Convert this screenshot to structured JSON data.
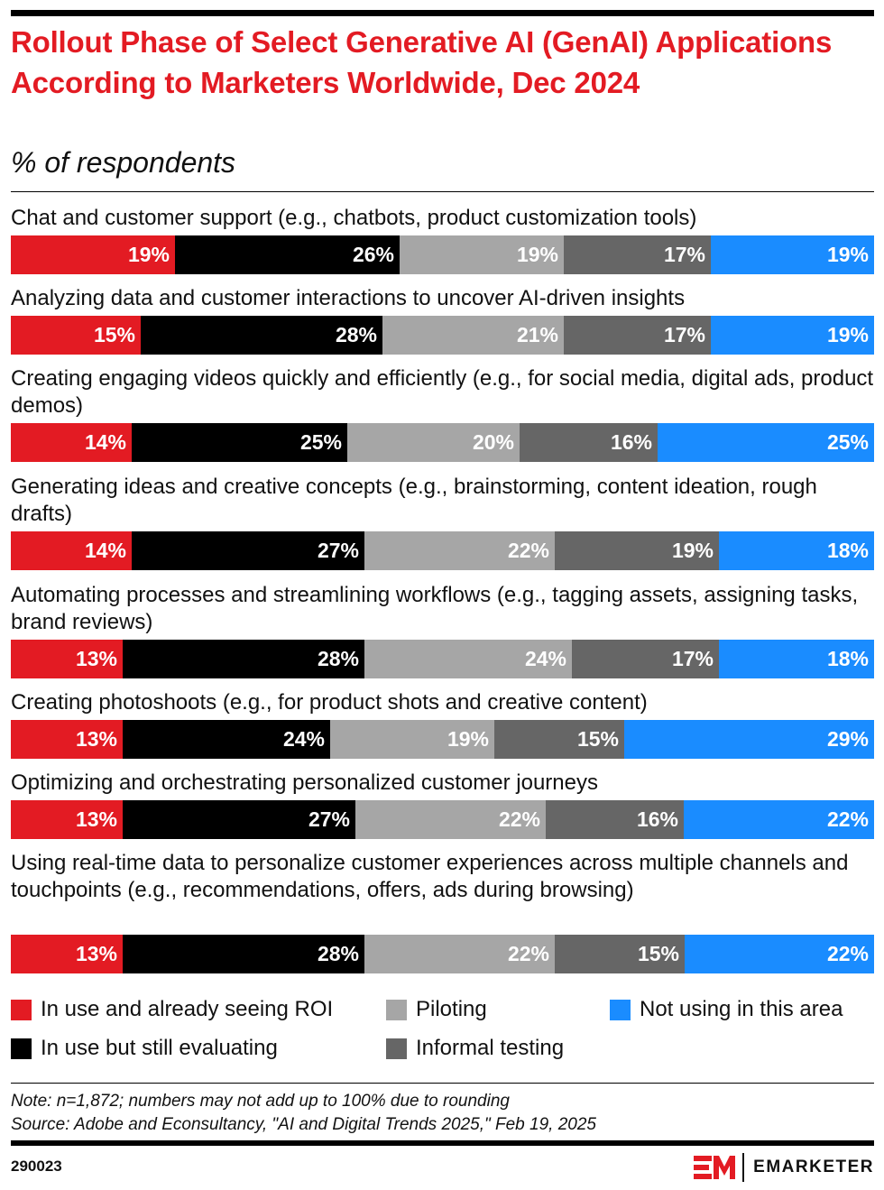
{
  "header": {
    "title": "Rollout Phase of Select Generative AI (GenAI) Applications According to Marketers Worldwide, Dec 2024",
    "subtitle": "% of respondents"
  },
  "chart_data": {
    "type": "bar",
    "orientation": "horizontal-stacked-100",
    "title": "Rollout Phase of Select Generative AI (GenAI) Applications According to Marketers Worldwide, Dec 2024",
    "subtitle": "% of respondents",
    "categories": [
      "Chat and customer support (e.g., chatbots, product customization tools)",
      "Analyzing data and customer interactions to uncover AI-driven insights",
      "Creating engaging videos quickly and efficiently (e.g., for social media, digital ads, product demos)",
      "Generating ideas and creative concepts (e.g., brainstorming, content ideation, rough drafts)",
      "Automating processes and streamlining workflows (e.g., tagging assets, assigning tasks, brand reviews)",
      "Creating photoshoots (e.g., for product shots and creative content)",
      "Optimizing and orchestrating personalized customer journeys",
      "Using real-time data to personalize customer experiences across multiple channels and touchpoints (e.g., recommendations, offers, ads during browsing)"
    ],
    "series": [
      {
        "name": "In use and already seeing ROI",
        "color": "#e31b23",
        "values": [
          19,
          15,
          14,
          14,
          13,
          13,
          13,
          13
        ]
      },
      {
        "name": "In use but still evaluating",
        "color": "#000000",
        "values": [
          26,
          28,
          25,
          27,
          28,
          24,
          27,
          28
        ]
      },
      {
        "name": "Piloting",
        "color": "#a6a6a6",
        "values": [
          19,
          21,
          20,
          22,
          24,
          19,
          22,
          22
        ]
      },
      {
        "name": "Informal testing",
        "color": "#666666",
        "values": [
          17,
          17,
          16,
          19,
          17,
          15,
          16,
          15
        ]
      },
      {
        "name": "Not using in this area",
        "color": "#1a8cff",
        "values": [
          19,
          19,
          25,
          18,
          18,
          29,
          22,
          22
        ]
      }
    ],
    "value_suffix": "%",
    "legend_position": "bottom",
    "grid": false
  },
  "legend": [
    {
      "label": "In use and already seeing ROI",
      "color": "#e31b23"
    },
    {
      "label": "Piloting",
      "color": "#a6a6a6"
    },
    {
      "label": "Not using in this area",
      "color": "#1a8cff"
    },
    {
      "label": "In use but still evaluating",
      "color": "#000000"
    },
    {
      "label": "Informal testing",
      "color": "#666666"
    }
  ],
  "footer": {
    "note": "Note: n=1,872; numbers may not add up to 100% due to rounding",
    "source": "Source: Adobe and Econsultancy, \"AI and Digital Trends 2025,\" Feb 19, 2025",
    "chart_id": "290023",
    "brand": "EMARKETER"
  }
}
